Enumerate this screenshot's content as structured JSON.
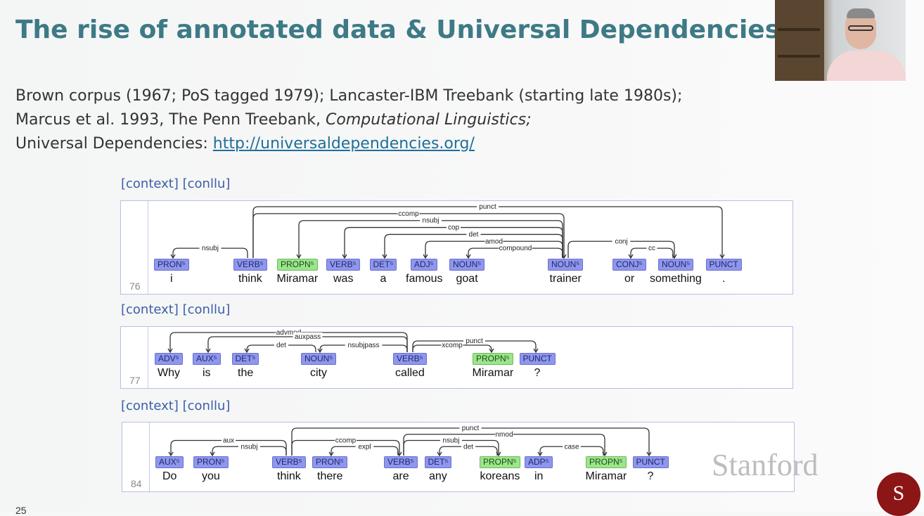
{
  "title": "The rise of annotated data & Universal Dependencies tree",
  "lines": {
    "l1": "Brown corpus (1967; PoS tagged 1979); Lancaster-IBM Treebank (starting late 1980s);",
    "l2_plain": "Marcus et al. 1993, The Penn Treebank, ",
    "l2_italic": "Computational Linguistics;",
    "l3_plain": "Universal Dependencies: ",
    "l3_link": "http://universaldependencies.org/"
  },
  "context_links": "[context] [conllu]",
  "sentences": [
    {
      "num": "76",
      "tokens": [
        {
          "word": "i",
          "tag": "PRON"
        },
        {
          "word": "think",
          "tag": "VERB"
        },
        {
          "word": "Miramar",
          "tag": "PROPN"
        },
        {
          "word": "was",
          "tag": "VERB"
        },
        {
          "word": "a",
          "tag": "DET"
        },
        {
          "word": "famous",
          "tag": "ADJ"
        },
        {
          "word": "goat",
          "tag": "NOUN"
        },
        {
          "word": "trainer",
          "tag": "NOUN"
        },
        {
          "word": "or",
          "tag": "CONJ"
        },
        {
          "word": "something",
          "tag": "NOUN"
        },
        {
          "word": ".",
          "tag": "PUNCT"
        }
      ],
      "arcs": [
        {
          "label": "nsubj",
          "from": 1,
          "to": 0
        },
        {
          "label": "punct",
          "from": 1,
          "to": 10
        },
        {
          "label": "ccomp",
          "from": 1,
          "to": 7
        },
        {
          "label": "nsubj",
          "from": 7,
          "to": 2
        },
        {
          "label": "cop",
          "from": 7,
          "to": 3
        },
        {
          "label": "det",
          "from": 7,
          "to": 4
        },
        {
          "label": "amod",
          "from": 7,
          "to": 5
        },
        {
          "label": "compound",
          "from": 7,
          "to": 6
        },
        {
          "label": "conj",
          "from": 7,
          "to": 9
        },
        {
          "label": "cc",
          "from": 9,
          "to": 8
        }
      ]
    },
    {
      "num": "77",
      "tokens": [
        {
          "word": "Why",
          "tag": "ADV"
        },
        {
          "word": "is",
          "tag": "AUX"
        },
        {
          "word": "the",
          "tag": "DET"
        },
        {
          "word": "city",
          "tag": "NOUN"
        },
        {
          "word": "called",
          "tag": "VERB"
        },
        {
          "word": "Miramar",
          "tag": "PROPN"
        },
        {
          "word": "?",
          "tag": "PUNCT"
        }
      ],
      "arcs": [
        {
          "label": "advmod",
          "from": 4,
          "to": 0
        },
        {
          "label": "auxpass",
          "from": 4,
          "to": 1
        },
        {
          "label": "det",
          "from": 3,
          "to": 2
        },
        {
          "label": "nsubjpass",
          "from": 4,
          "to": 3
        },
        {
          "label": "xcomp",
          "from": 4,
          "to": 5
        },
        {
          "label": "punct",
          "from": 4,
          "to": 6
        }
      ]
    },
    {
      "num": "84",
      "tokens": [
        {
          "word": "Do",
          "tag": "AUX"
        },
        {
          "word": "you",
          "tag": "PRON"
        },
        {
          "word": "think",
          "tag": "VERB"
        },
        {
          "word": "there",
          "tag": "PRON"
        },
        {
          "word": "are",
          "tag": "VERB"
        },
        {
          "word": "any",
          "tag": "DET"
        },
        {
          "word": "koreans",
          "tag": "PROPN"
        },
        {
          "word": "in",
          "tag": "ADP"
        },
        {
          "word": "Miramar",
          "tag": "PROPN"
        },
        {
          "word": "?",
          "tag": "PUNCT"
        }
      ],
      "arcs": [
        {
          "label": "aux",
          "from": 2,
          "to": 0
        },
        {
          "label": "nsubj",
          "from": 2,
          "to": 1
        },
        {
          "label": "punct",
          "from": 2,
          "to": 9
        },
        {
          "label": "ccomp",
          "from": 2,
          "to": 4
        },
        {
          "label": "expl",
          "from": 4,
          "to": 3
        },
        {
          "label": "nsubj",
          "from": 4,
          "to": 6
        },
        {
          "label": "det",
          "from": 6,
          "to": 5
        },
        {
          "label": "nmod",
          "from": 4,
          "to": 8
        },
        {
          "label": "case",
          "from": 8,
          "to": 7
        }
      ]
    }
  ],
  "branding": {
    "wordmark": "Stanford",
    "seal": "S"
  },
  "page_number": "25",
  "colors": {
    "title": "#3d7a86",
    "tag": "#8f96ee",
    "propn_tag": "#9be58b",
    "link": "#1e6f99"
  }
}
